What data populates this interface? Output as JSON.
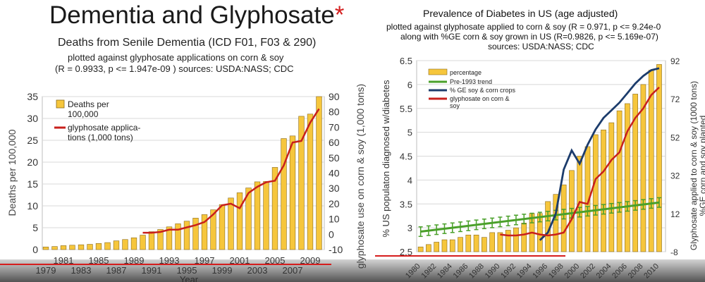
{
  "left_header": {
    "title": "Dementia and Glyphosate",
    "star": "*",
    "subtitle": "Deaths from Senile Dementia (ICD F01, F03 & 290)",
    "line2": "plotted against glyphosate applications on corn & soy",
    "line3": "(R = 0.9933, p <= 1.947e-09 ) sources: USDA:NASS; CDC"
  },
  "right_header": {
    "title": "Prevalence of Diabetes in US (age adjusted)",
    "line2": "plotted against glyphosate applied to corn & soy (R = 0.971, p <= 9.24e-0",
    "line3": "along with %GE corn & soy grown in US (R=0.9826, p <= 5.169e-07)",
    "line4": "sources: USDA:NASS; CDC"
  },
  "colors": {
    "bar_fill": "#f6c63c",
    "bar_stroke": "#8a6a1a",
    "glyphosate_line": "#c8201c",
    "ge_line": "#1c3c6c",
    "trend_line": "#4aa02a",
    "grid": "#d8d8d8"
  },
  "chart_data": [
    {
      "type": "bar",
      "ylabel": "Deaths per 100,000",
      "y2label": "glyphosate use on corn & soy (1,000 tons)",
      "xlabel": "Year",
      "ylim": [
        0,
        35
      ],
      "y2lim": [
        -10,
        90
      ],
      "yticks": [
        "0",
        "5",
        "10",
        "15",
        "20",
        "25",
        "30",
        "35"
      ],
      "y2ticks": [
        "-10",
        "0",
        "10",
        "20",
        "30",
        "40",
        "50",
        "60",
        "70",
        "80",
        "90"
      ],
      "xticks": [
        "1979",
        "1981",
        "1983",
        "1985",
        "1987",
        "1989",
        "1991",
        "1993",
        "1995",
        "1997",
        "1999",
        "2001",
        "2003",
        "2005",
        "2007",
        "2009"
      ],
      "grid": true,
      "legend_position": "top-left",
      "legend": [
        "Deaths per 100,000",
        "glyphosate applica- tions (1,000 tons)"
      ],
      "x": [
        1979,
        1980,
        1981,
        1982,
        1983,
        1984,
        1985,
        1986,
        1987,
        1988,
        1989,
        1990,
        1991,
        1992,
        1993,
        1994,
        1995,
        1996,
        1997,
        1998,
        1999,
        2000,
        2001,
        2002,
        2003,
        2004,
        2005,
        2006,
        2007,
        2008,
        2009,
        2010
      ],
      "series": [
        {
          "name": "Deaths per 100,000",
          "kind": "bar",
          "axis": "left",
          "values": [
            0.6,
            0.7,
            0.9,
            1.0,
            1.1,
            1.2,
            1.4,
            1.6,
            2.0,
            2.3,
            2.7,
            3.3,
            4.1,
            4.6,
            5.2,
            5.9,
            6.5,
            7.2,
            8.0,
            9.1,
            10.3,
            11.8,
            13.0,
            14.1,
            15.5,
            15.6,
            18.8,
            25.4,
            26.0,
            30.5,
            31.0,
            35.0
          ]
        },
        {
          "name": "glyphosate applica- tions (1,000 tons)",
          "kind": "line",
          "axis": "right",
          "x": [
            1990,
            1991,
            1992,
            1993,
            1994,
            1995,
            1996,
            1997,
            1998,
            1999,
            2000,
            2001,
            2002,
            2003,
            2004,
            2005,
            2006,
            2007,
            2008,
            2009,
            2010
          ],
          "values": [
            1,
            1,
            1.5,
            3,
            3,
            4.5,
            6,
            8,
            13,
            19,
            20,
            17,
            27,
            31,
            34,
            35,
            45,
            60,
            61,
            73,
            82
          ]
        }
      ]
    },
    {
      "type": "bar",
      "ylabel": "% US populaton diagnosed w/diabetes",
      "y2label": "Glyphosate applied to corn & soy (1000 tons)",
      "y2label_2": "%GE corn and soy planted",
      "ylim": [
        2.5,
        6.5
      ],
      "y2lim": [
        -8,
        92
      ],
      "yticks": [
        "2.5",
        "3",
        "3.5",
        "4",
        "4.5",
        "5",
        "5.5",
        "6",
        "6.5"
      ],
      "y2ticks": [
        "-8",
        "12",
        "32",
        "52",
        "72",
        "92"
      ],
      "xticks": [
        "1980",
        "1982",
        "1984",
        "1986",
        "1988",
        "1990",
        "1992",
        "1994",
        "1996",
        "1998",
        "2000",
        "2002",
        "2004",
        "2006",
        "2008",
        "2010"
      ],
      "grid": true,
      "legend_position": "top-left",
      "legend": [
        "percentage",
        "Pre-1993 trend",
        "% GE soy & corn crops",
        "glyphosate on corn & soy"
      ],
      "x": [
        1980,
        1981,
        1982,
        1983,
        1984,
        1985,
        1986,
        1987,
        1988,
        1989,
        1990,
        1991,
        1992,
        1993,
        1994,
        1995,
        1996,
        1997,
        1998,
        1999,
        2000,
        2001,
        2002,
        2003,
        2004,
        2005,
        2006,
        2007,
        2008,
        2009,
        2010
      ],
      "series": [
        {
          "name": "percentage",
          "kind": "bar",
          "axis": "left",
          "values": [
            2.6,
            2.65,
            2.7,
            2.75,
            2.75,
            2.8,
            2.85,
            2.85,
            2.8,
            2.9,
            2.9,
            2.95,
            3.0,
            3.1,
            3.3,
            3.3,
            3.55,
            3.7,
            3.9,
            4.2,
            4.5,
            4.7,
            4.95,
            5.05,
            5.2,
            5.45,
            5.6,
            5.8,
            6.0,
            6.3,
            6.42
          ]
        },
        {
          "name": "Pre-1993 trend",
          "kind": "line",
          "axis": "left",
          "x": [
            1980,
            2010
          ],
          "values": [
            2.92,
            3.53
          ]
        },
        {
          "name": "% GE soy & corn crops",
          "kind": "line",
          "axis": "right",
          "x": [
            1995,
            1996,
            1997,
            1998,
            1999,
            2000,
            2001,
            2002,
            2003,
            2004,
            2005,
            2006,
            2007,
            2008,
            2009,
            2010
          ],
          "values": [
            -2,
            2,
            12,
            35,
            45,
            38,
            48,
            56,
            62,
            66,
            70,
            75,
            80,
            84,
            87,
            88
          ]
        },
        {
          "name": "glyphosate on corn & soy",
          "kind": "line",
          "axis": "right",
          "x": [
            1990,
            1991,
            1992,
            1993,
            1994,
            1995,
            1996,
            1997,
            1998,
            1999,
            2000,
            2001,
            2002,
            2003,
            2004,
            2005,
            2006,
            2007,
            2008,
            2009,
            2010
          ],
          "values": [
            1,
            0.5,
            0.5,
            1,
            2,
            1,
            0.5,
            1,
            2,
            9,
            18,
            17,
            30,
            34,
            40,
            44,
            55,
            62,
            67,
            74,
            78
          ]
        }
      ]
    }
  ]
}
